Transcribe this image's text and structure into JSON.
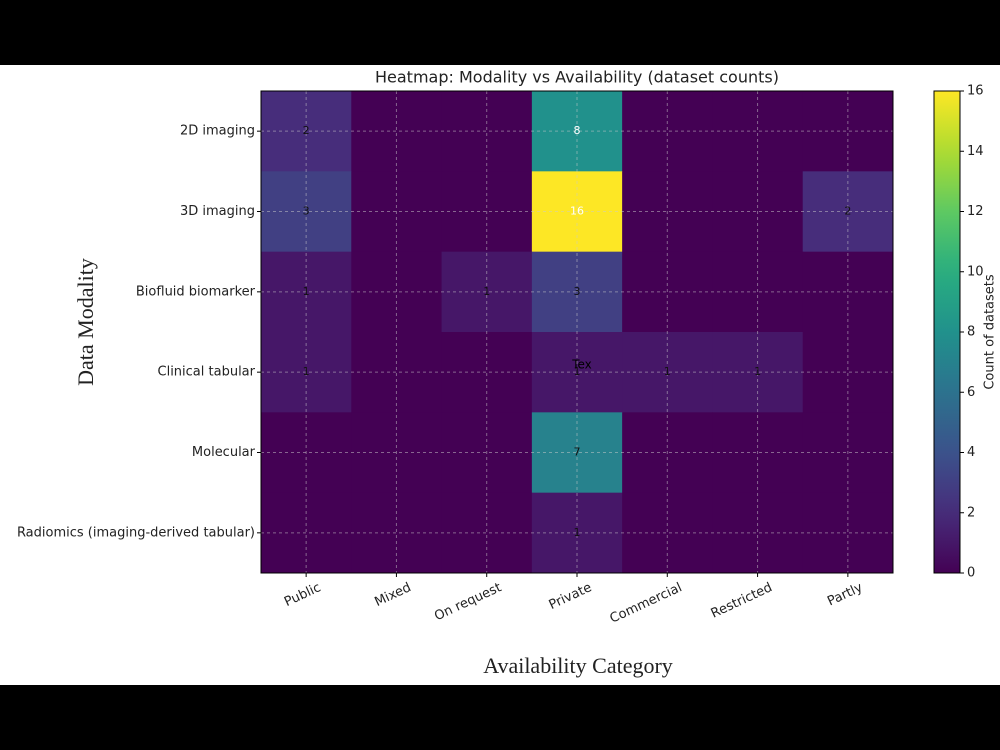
{
  "chart_data": {
    "type": "heatmap",
    "title": "Heatmap: Modality vs Availability (dataset counts)",
    "xlabel": "Availability Category",
    "ylabel": "Data Modality",
    "colorbar_label": "Count of datasets",
    "x_categories": [
      "Public",
      "Mixed",
      "On request",
      "Private",
      "Commercial",
      "Restricted",
      "Partly"
    ],
    "y_categories": [
      "2D imaging",
      "3D imaging",
      "Biofluid biomarker",
      "Clinical tabular",
      "Molecular",
      "Radiomics (imaging-derived tabular)"
    ],
    "values": [
      [
        2,
        0,
        0,
        8,
        0,
        0,
        0
      ],
      [
        3,
        0,
        0,
        16,
        0,
        0,
        2
      ],
      [
        1,
        0,
        1,
        3,
        0,
        0,
        0
      ],
      [
        1,
        0,
        0,
        1,
        1,
        1,
        0
      ],
      [
        0,
        0,
        0,
        7,
        0,
        0,
        0
      ],
      [
        0,
        0,
        0,
        1,
        0,
        0,
        0
      ]
    ],
    "colormap": "viridis",
    "clim": [
      0,
      16
    ],
    "cticks": [
      0,
      2,
      4,
      6,
      8,
      10,
      12,
      14,
      16
    ],
    "grid": true,
    "annotation": "Tex"
  }
}
